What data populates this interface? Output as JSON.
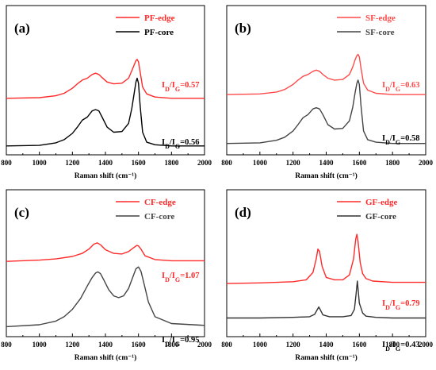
{
  "chart_data": [
    {
      "type": "line",
      "panel_label": "(a)",
      "xlabel": "Raman shift (cm⁻¹)",
      "xlim": [
        800,
        2000
      ],
      "xticks": [
        "800",
        "1000",
        "1200",
        "1400",
        "1600",
        "1800",
        "2000"
      ],
      "ylabel": "",
      "yticks": false,
      "legend_position": "top-right",
      "series": [
        {
          "name": "PF-edge",
          "color": "#ff2a2a",
          "baseline": 0.42,
          "x": [
            800,
            1000,
            1100,
            1150,
            1200,
            1230,
            1260,
            1290,
            1320,
            1340,
            1360,
            1380,
            1410,
            1450,
            1500,
            1540,
            1560,
            1575,
            1585,
            1592,
            1600,
            1610,
            1625,
            1650,
            1700,
            1800,
            2000
          ],
          "y": [
            0.4,
            0.405,
            0.42,
            0.44,
            0.48,
            0.515,
            0.545,
            0.56,
            0.59,
            0.6,
            0.59,
            0.565,
            0.53,
            0.515,
            0.52,
            0.56,
            0.62,
            0.67,
            0.7,
            0.71,
            0.69,
            0.61,
            0.49,
            0.435,
            0.41,
            0.4,
            0.4
          ],
          "ratio_label": "I_D/I_G=0.57",
          "ratio_value": 0.57
        },
        {
          "name": "PF-core",
          "color": "#000000",
          "x": [
            800,
            1000,
            1100,
            1150,
            1200,
            1230,
            1260,
            1290,
            1320,
            1340,
            1360,
            1380,
            1410,
            1450,
            1500,
            1540,
            1560,
            1575,
            1585,
            1592,
            1600,
            1610,
            1625,
            1650,
            1700,
            1800,
            2000
          ],
          "y": [
            0.02,
            0.025,
            0.045,
            0.07,
            0.12,
            0.17,
            0.225,
            0.25,
            0.3,
            0.31,
            0.3,
            0.25,
            0.17,
            0.13,
            0.135,
            0.2,
            0.32,
            0.45,
            0.53,
            0.56,
            0.52,
            0.34,
            0.13,
            0.05,
            0.03,
            0.02,
            0.02
          ],
          "ratio_label": "I_D/I_G=0.56",
          "ratio_value": 0.56
        }
      ]
    },
    {
      "type": "line",
      "panel_label": "(b)",
      "xlabel": "Raman shift (cm⁻¹)",
      "xlim": [
        800,
        2000
      ],
      "xticks": [
        "800",
        "1000",
        "1200",
        "1400",
        "1600",
        "1800",
        "2000"
      ],
      "ylabel": "",
      "yticks": false,
      "legend_position": "top-right",
      "series": [
        {
          "name": "SF-edge",
          "color": "#ff4a4a",
          "x": [
            800,
            1000,
            1100,
            1150,
            1200,
            1230,
            1260,
            1290,
            1320,
            1340,
            1360,
            1380,
            1410,
            1450,
            1500,
            1540,
            1560,
            1575,
            1585,
            1592,
            1600,
            1610,
            1625,
            1650,
            1700,
            1800,
            2000
          ],
          "y": [
            0.43,
            0.435,
            0.45,
            0.47,
            0.51,
            0.545,
            0.575,
            0.59,
            0.615,
            0.625,
            0.615,
            0.59,
            0.56,
            0.545,
            0.55,
            0.59,
            0.65,
            0.71,
            0.74,
            0.75,
            0.73,
            0.64,
            0.52,
            0.465,
            0.44,
            0.43,
            0.43
          ],
          "ratio_label": "I_D/I_G=0.63",
          "ratio_value": 0.63
        },
        {
          "name": "SF-core",
          "color": "#444444",
          "x": [
            800,
            1000,
            1100,
            1150,
            1200,
            1230,
            1260,
            1290,
            1320,
            1340,
            1360,
            1380,
            1410,
            1450,
            1500,
            1540,
            1560,
            1575,
            1585,
            1592,
            1600,
            1610,
            1625,
            1650,
            1700,
            1800,
            2000
          ],
          "y": [
            0.04,
            0.045,
            0.065,
            0.09,
            0.14,
            0.19,
            0.245,
            0.27,
            0.315,
            0.325,
            0.315,
            0.27,
            0.19,
            0.155,
            0.16,
            0.22,
            0.33,
            0.45,
            0.52,
            0.545,
            0.51,
            0.34,
            0.14,
            0.07,
            0.05,
            0.04,
            0.04
          ],
          "ratio_label": "I_D/I_G=0.58",
          "ratio_value": 0.58
        }
      ]
    },
    {
      "type": "line",
      "panel_label": "(c)",
      "xlabel": "Raman shift (cm⁻¹)",
      "xlim": [
        800,
        2000
      ],
      "xticks": [
        "800",
        "1000",
        "1200",
        "1400",
        "1600",
        "1800",
        "2000"
      ],
      "ylabel": "",
      "yticks": false,
      "legend_position": "top-right",
      "series": [
        {
          "name": "CF-edge",
          "color": "#ff2a2a",
          "x": [
            800,
            1000,
            1100,
            1200,
            1260,
            1300,
            1330,
            1350,
            1370,
            1400,
            1450,
            1500,
            1540,
            1570,
            1590,
            1600,
            1615,
            1640,
            1700,
            1800,
            2000
          ],
          "y": [
            0.56,
            0.57,
            0.58,
            0.6,
            0.625,
            0.66,
            0.7,
            0.71,
            0.695,
            0.655,
            0.625,
            0.62,
            0.64,
            0.67,
            0.69,
            0.685,
            0.66,
            0.605,
            0.575,
            0.565,
            0.565
          ],
          "ratio_label": "I_D/I_G=1.07",
          "ratio_value": 1.07
        },
        {
          "name": "CF-core",
          "color": "#444444",
          "x": [
            800,
            1000,
            1100,
            1150,
            1200,
            1250,
            1290,
            1320,
            1340,
            1355,
            1370,
            1390,
            1420,
            1450,
            1480,
            1510,
            1540,
            1565,
            1585,
            1600,
            1615,
            1635,
            1660,
            1700,
            1800,
            2000
          ],
          "y": [
            0.03,
            0.045,
            0.075,
            0.11,
            0.17,
            0.26,
            0.36,
            0.43,
            0.465,
            0.475,
            0.46,
            0.41,
            0.33,
            0.28,
            0.265,
            0.28,
            0.34,
            0.43,
            0.5,
            0.515,
            0.48,
            0.37,
            0.23,
            0.11,
            0.055,
            0.04
          ],
          "ratio_label": "I_D/I_G=0.95",
          "ratio_value": 0.95
        }
      ]
    },
    {
      "type": "line",
      "panel_label": "(d)",
      "xlabel": "Raman shift (cm⁻¹)",
      "xlim": [
        800,
        2000
      ],
      "xticks": [
        "800",
        "1000",
        "1200",
        "1400",
        "1600",
        "1800",
        "2000"
      ],
      "ylabel": "",
      "yticks": false,
      "legend_position": "top-right",
      "series": [
        {
          "name": "GF-edge",
          "color": "#ff2a2a",
          "x": [
            800,
            1000,
            1200,
            1280,
            1320,
            1340,
            1350,
            1360,
            1375,
            1400,
            1450,
            1500,
            1540,
            1565,
            1578,
            1585,
            1592,
            1605,
            1620,
            1640,
            1680,
            1800,
            2000
          ],
          "y": [
            0.38,
            0.385,
            0.395,
            0.41,
            0.47,
            0.58,
            0.66,
            0.64,
            0.52,
            0.43,
            0.41,
            0.41,
            0.45,
            0.58,
            0.74,
            0.78,
            0.72,
            0.55,
            0.46,
            0.42,
            0.4,
            0.39,
            0.39
          ],
          "ratio_label": "I_D/I_G=0.79",
          "ratio_value": 0.79
        },
        {
          "name": "GF-core",
          "color": "#333333",
          "x": [
            800,
            1000,
            1200,
            1300,
            1330,
            1345,
            1355,
            1365,
            1380,
            1420,
            1500,
            1550,
            1570,
            1580,
            1588,
            1600,
            1620,
            1640,
            1700,
            1800,
            2000
          ],
          "y": [
            0.1,
            0.1,
            0.105,
            0.11,
            0.13,
            0.165,
            0.19,
            0.165,
            0.125,
            0.11,
            0.11,
            0.12,
            0.17,
            0.29,
            0.4,
            0.22,
            0.14,
            0.115,
            0.105,
            0.1,
            0.1
          ],
          "ratio_label": "I_D/I_G=0.43",
          "ratio_value": 0.43
        }
      ]
    }
  ]
}
